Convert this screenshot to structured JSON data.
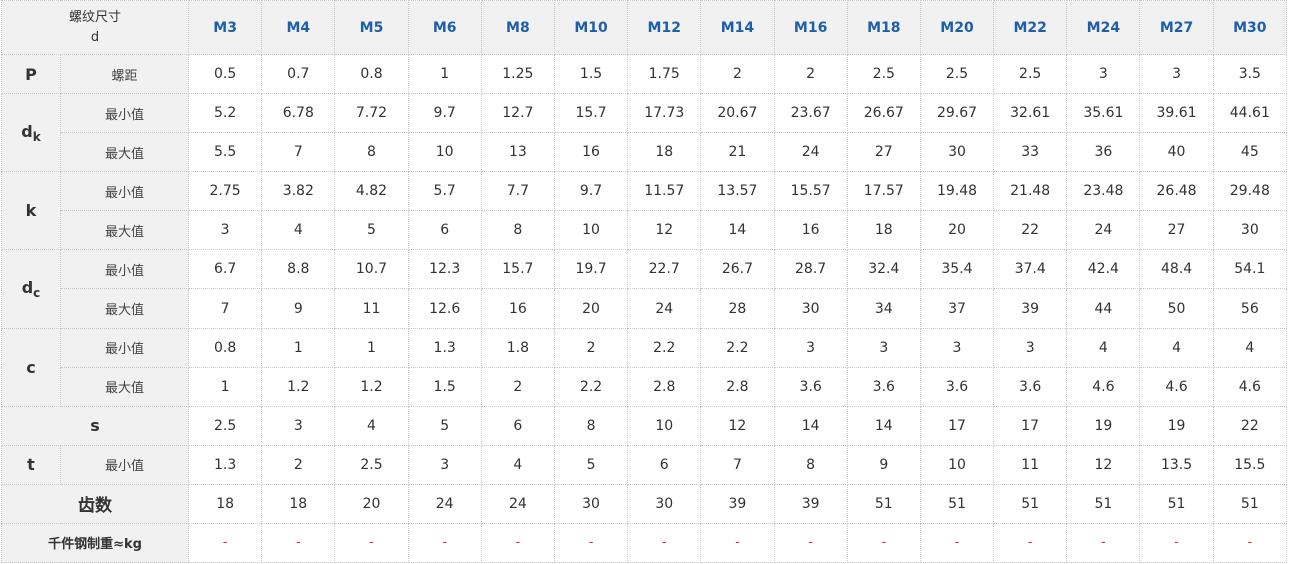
{
  "header": {
    "label_line1": "螺纹尺寸",
    "label_line2": "d",
    "sizes": [
      "M3",
      "M4",
      "M5",
      "M6",
      "M8",
      "M10",
      "M12",
      "M14",
      "M16",
      "M18",
      "M20",
      "M22",
      "M24",
      "M27",
      "M30"
    ]
  },
  "labels": {
    "min": "最小值",
    "max": "最大值",
    "pitch": "螺距"
  },
  "rows": {
    "P": {
      "sym": "P",
      "values": [
        "0.5",
        "0.7",
        "0.8",
        "1",
        "1.25",
        "1.5",
        "1.75",
        "2",
        "2",
        "2.5",
        "2.5",
        "2.5",
        "3",
        "3",
        "3.5"
      ]
    },
    "dk": {
      "sym_main": "d",
      "sym_sub": "k",
      "min": [
        "5.2",
        "6.78",
        "7.72",
        "9.7",
        "12.7",
        "15.7",
        "17.73",
        "20.67",
        "23.67",
        "26.67",
        "29.67",
        "32.61",
        "35.61",
        "39.61",
        "44.61"
      ],
      "max": [
        "5.5",
        "7",
        "8",
        "10",
        "13",
        "16",
        "18",
        "21",
        "24",
        "27",
        "30",
        "33",
        "36",
        "40",
        "45"
      ]
    },
    "k": {
      "sym": "k",
      "min": [
        "2.75",
        "3.82",
        "4.82",
        "5.7",
        "7.7",
        "9.7",
        "11.57",
        "13.57",
        "15.57",
        "17.57",
        "19.48",
        "21.48",
        "23.48",
        "26.48",
        "29.48"
      ],
      "max": [
        "3",
        "4",
        "5",
        "6",
        "8",
        "10",
        "12",
        "14",
        "16",
        "18",
        "20",
        "22",
        "24",
        "27",
        "30"
      ]
    },
    "dc": {
      "sym_main": "d",
      "sym_sub": "c",
      "min": [
        "6.7",
        "8.8",
        "10.7",
        "12.3",
        "15.7",
        "19.7",
        "22.7",
        "26.7",
        "28.7",
        "32.4",
        "35.4",
        "37.4",
        "42.4",
        "48.4",
        "54.1"
      ],
      "max": [
        "7",
        "9",
        "11",
        "12.6",
        "16",
        "20",
        "24",
        "28",
        "30",
        "34",
        "37",
        "39",
        "44",
        "50",
        "56"
      ]
    },
    "c": {
      "sym": "c",
      "min": [
        "0.8",
        "1",
        "1",
        "1.3",
        "1.8",
        "2",
        "2.2",
        "2.2",
        "3",
        "3",
        "3",
        "3",
        "4",
        "4",
        "4"
      ],
      "max": [
        "1",
        "1.2",
        "1.2",
        "1.5",
        "2",
        "2.2",
        "2.8",
        "2.8",
        "3.6",
        "3.6",
        "3.6",
        "3.6",
        "4.6",
        "4.6",
        "4.6"
      ]
    },
    "s": {
      "sym": "s",
      "values": [
        "2.5",
        "3",
        "4",
        "5",
        "6",
        "8",
        "10",
        "12",
        "14",
        "14",
        "17",
        "17",
        "19",
        "19",
        "22"
      ]
    },
    "t": {
      "sym": "t",
      "min": [
        "1.3",
        "2",
        "2.5",
        "3",
        "4",
        "5",
        "6",
        "7",
        "8",
        "9",
        "10",
        "11",
        "12",
        "13.5",
        "15.5"
      ]
    },
    "teeth": {
      "label": "齿数",
      "values": [
        "18",
        "18",
        "20",
        "24",
        "24",
        "30",
        "30",
        "39",
        "39",
        "51",
        "51",
        "51",
        "51",
        "51",
        "51"
      ]
    },
    "weight": {
      "label": "千件钢制重≈kg",
      "values": [
        "-",
        "-",
        "-",
        "-",
        "-",
        "-",
        "-",
        "-",
        "-",
        "-",
        "-",
        "-",
        "-",
        "-",
        "-"
      ]
    }
  }
}
